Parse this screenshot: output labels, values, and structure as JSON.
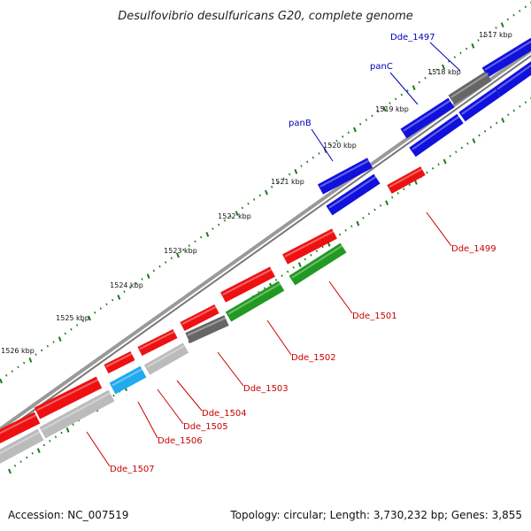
{
  "title": "Desulfovibrio desulfuricans G20, complete genome",
  "footer": {
    "accession": "Accession: NC_007519",
    "summary": "Topology: circular; Length: 3,730,232 bp; Genes: 3,855"
  },
  "colors": {
    "red": "#ee1111",
    "blue": "#1111dd",
    "green": "#229922",
    "darkgray": "#666666",
    "lightgray": "#bbbbbb",
    "cyan": "#22aaee",
    "dots": "#1a7a1a",
    "backbone": "#888888",
    "label_red": "#cc0000",
    "label_blue": "#0000bb"
  },
  "kbp_labels": [
    "1517 kbp",
    "1518 kbp",
    "1519 kbp",
    "1520 kbp",
    "1521 kbp",
    "1522 kbp",
    "1523 kbp",
    "1524 kbp",
    "1525 kbp",
    "1526 kbp"
  ],
  "gene_labels": [
    {
      "text": "Dde_1497",
      "color": "blue"
    },
    {
      "text": "panC",
      "color": "blue"
    },
    {
      "text": "panB",
      "color": "blue"
    },
    {
      "text": "Dde_1499",
      "color": "red"
    },
    {
      "text": "Dde_1501",
      "color": "red"
    },
    {
      "text": "Dde_1502",
      "color": "red"
    },
    {
      "text": "Dde_1503",
      "color": "red"
    },
    {
      "text": "Dde_1504",
      "color": "red"
    },
    {
      "text": "Dde_1505",
      "color": "red"
    },
    {
      "text": "Dde_1506",
      "color": "red"
    },
    {
      "text": "Dde_1507",
      "color": "red"
    }
  ]
}
